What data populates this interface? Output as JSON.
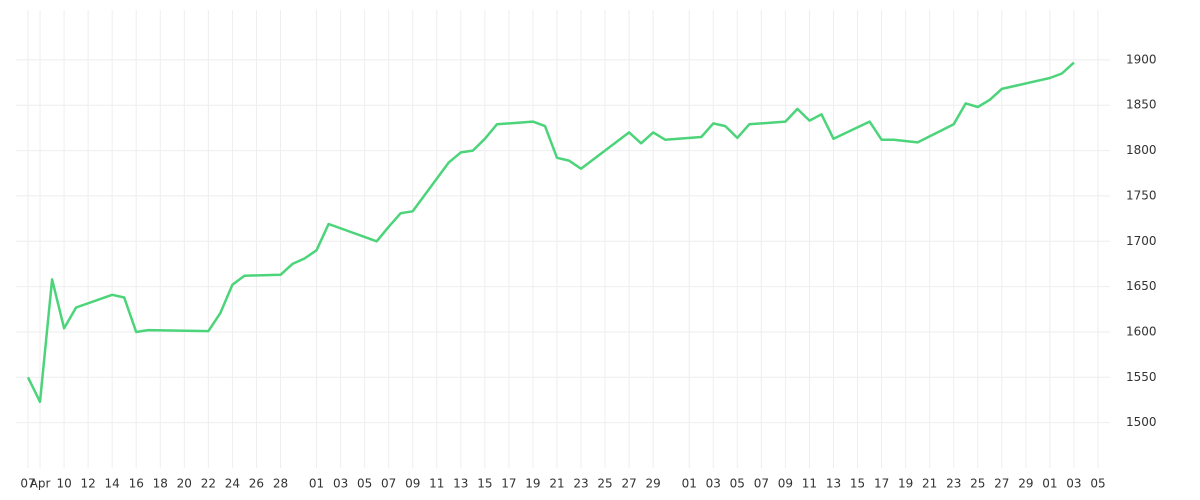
{
  "chart_data": {
    "type": "line",
    "x": [
      "04-07",
      "04-08",
      "04-09",
      "04-10",
      "04-11",
      "04-14",
      "04-15",
      "04-16",
      "04-17",
      "04-22",
      "04-23",
      "04-24",
      "04-25",
      "04-28",
      "04-29",
      "04-30",
      "05-01",
      "05-02",
      "05-06",
      "05-07",
      "05-08",
      "05-09",
      "05-12",
      "05-13",
      "05-14",
      "05-15",
      "05-16",
      "05-19",
      "05-20",
      "05-21",
      "05-22",
      "05-23",
      "05-27",
      "05-28",
      "05-29",
      "05-30",
      "06-02",
      "06-03",
      "06-04",
      "06-05",
      "06-06",
      "06-09",
      "06-10",
      "06-11",
      "06-12",
      "06-13",
      "06-16",
      "06-17",
      "06-18",
      "06-20",
      "06-23",
      "06-24",
      "06-25",
      "06-26",
      "06-27",
      "06-30",
      "07-01",
      "07-02",
      "07-03"
    ],
    "series": [
      {
        "color": "#4cd47a",
        "values": [
          1550,
          1523,
          1658,
          1604,
          1627,
          1641,
          1638,
          1600,
          1602,
          1601,
          1621,
          1652,
          1662,
          1663,
          1675,
          1681,
          1690,
          1719,
          1700,
          1716,
          1731,
          1733,
          1787,
          1798,
          1800,
          1813,
          1829,
          1832,
          1827,
          1792,
          1789,
          1780,
          1820,
          1808,
          1820,
          1812,
          1815,
          1830,
          1827,
          1814,
          1829,
          1832,
          1846,
          1833,
          1840,
          1813,
          1832,
          1812,
          1812,
          1809,
          1829,
          1852,
          1848,
          1856,
          1868,
          1877,
          1880,
          1885,
          1897
        ]
      }
    ],
    "xlim": [
      "04-06",
      "07-06"
    ],
    "xticks": [
      {
        "value": "04-07",
        "label": "07"
      },
      {
        "value": "04-08",
        "label": "Apr"
      },
      {
        "value": "04-10",
        "label": "10"
      },
      {
        "value": "04-12",
        "label": "12"
      },
      {
        "value": "04-14",
        "label": "14"
      },
      {
        "value": "04-16",
        "label": "16"
      },
      {
        "value": "04-18",
        "label": "18"
      },
      {
        "value": "04-20",
        "label": "20"
      },
      {
        "value": "04-22",
        "label": "22"
      },
      {
        "value": "04-24",
        "label": "24"
      },
      {
        "value": "04-26",
        "label": "26"
      },
      {
        "value": "04-28",
        "label": "28"
      },
      {
        "value": "05-01",
        "label": "01"
      },
      {
        "value": "05-03",
        "label": "03"
      },
      {
        "value": "05-05",
        "label": "05"
      },
      {
        "value": "05-07",
        "label": "07"
      },
      {
        "value": "05-09",
        "label": "09"
      },
      {
        "value": "05-11",
        "label": "11"
      },
      {
        "value": "05-13",
        "label": "13"
      },
      {
        "value": "05-15",
        "label": "15"
      },
      {
        "value": "05-17",
        "label": "17"
      },
      {
        "value": "05-19",
        "label": "19"
      },
      {
        "value": "05-21",
        "label": "21"
      },
      {
        "value": "05-23",
        "label": "23"
      },
      {
        "value": "05-25",
        "label": "25"
      },
      {
        "value": "05-27",
        "label": "27"
      },
      {
        "value": "05-29",
        "label": "29"
      },
      {
        "value": "06-01",
        "label": "01"
      },
      {
        "value": "06-03",
        "label": "03"
      },
      {
        "value": "06-05",
        "label": "05"
      },
      {
        "value": "06-07",
        "label": "07"
      },
      {
        "value": "06-09",
        "label": "09"
      },
      {
        "value": "06-11",
        "label": "11"
      },
      {
        "value": "06-13",
        "label": "13"
      },
      {
        "value": "06-15",
        "label": "15"
      },
      {
        "value": "06-17",
        "label": "17"
      },
      {
        "value": "06-19",
        "label": "19"
      },
      {
        "value": "06-21",
        "label": "21"
      },
      {
        "value": "06-23",
        "label": "23"
      },
      {
        "value": "06-25",
        "label": "25"
      },
      {
        "value": "06-27",
        "label": "27"
      },
      {
        "value": "06-29",
        "label": "29"
      },
      {
        "value": "07-01",
        "label": "01"
      },
      {
        "value": "07-03",
        "label": "03"
      },
      {
        "value": "07-05",
        "label": "05"
      }
    ],
    "ylim": [
      1450,
      1955
    ],
    "yticks": [
      1500,
      1550,
      1600,
      1650,
      1700,
      1750,
      1800,
      1850,
      1900
    ],
    "grid": true
  }
}
